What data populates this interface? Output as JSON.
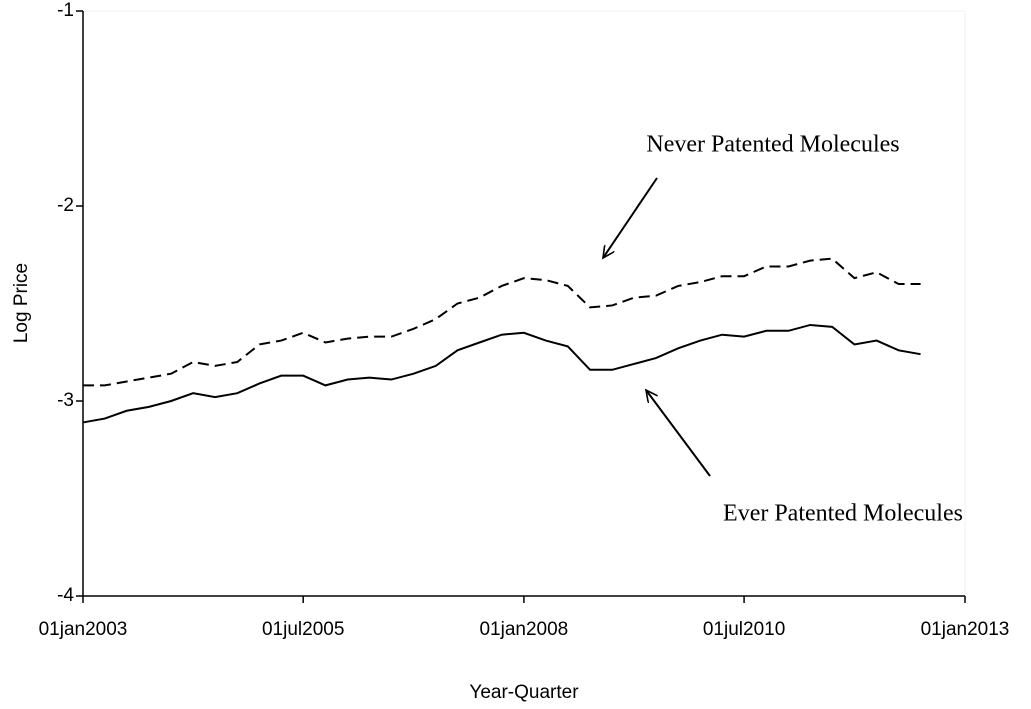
{
  "chart_data": {
    "type": "line",
    "y_label": "Log Price",
    "x_label": "Year-Quarter",
    "x": [
      "2003-01-01",
      "2003-04-01",
      "2003-07-01",
      "2003-10-01",
      "2004-01-01",
      "2004-04-01",
      "2004-07-01",
      "2004-10-01",
      "2005-01-01",
      "2005-04-01",
      "2005-07-01",
      "2005-10-01",
      "2006-01-01",
      "2006-04-01",
      "2006-07-01",
      "2006-10-01",
      "2007-01-01",
      "2007-04-01",
      "2007-07-01",
      "2007-10-01",
      "2008-01-01",
      "2008-04-01",
      "2008-07-01",
      "2008-10-01",
      "2009-01-01",
      "2009-04-01",
      "2009-07-01",
      "2009-10-01",
      "2010-01-01",
      "2010-04-01",
      "2010-07-01",
      "2010-10-01",
      "2011-01-01",
      "2011-04-01",
      "2011-07-01",
      "2011-10-01",
      "2012-01-01",
      "2012-04-01",
      "2012-07-01"
    ],
    "series": [
      {
        "name": "Never Patented Molecules",
        "color": "#000000",
        "style": "dashed",
        "values": [
          -2.92,
          -2.92,
          -2.9,
          -2.88,
          -2.86,
          -2.8,
          -2.82,
          -2.8,
          -2.71,
          -2.69,
          -2.65,
          -2.7,
          -2.68,
          -2.67,
          -2.67,
          -2.63,
          -2.58,
          -2.5,
          -2.47,
          -2.41,
          -2.37,
          -2.38,
          -2.41,
          -2.52,
          -2.51,
          -2.47,
          -2.46,
          -2.41,
          -2.39,
          -2.36,
          -2.36,
          -2.31,
          -2.31,
          -2.28,
          -2.27,
          -2.37,
          -2.34,
          -2.4,
          -2.4
        ]
      },
      {
        "name": "Ever Patented Molecules",
        "color": "#000000",
        "style": "solid",
        "values": [
          -3.11,
          -3.09,
          -3.05,
          -3.03,
          -3.0,
          -2.96,
          -2.98,
          -2.96,
          -2.91,
          -2.87,
          -2.87,
          -2.92,
          -2.89,
          -2.88,
          -2.89,
          -2.86,
          -2.82,
          -2.74,
          -2.7,
          -2.66,
          -2.65,
          -2.69,
          -2.72,
          -2.84,
          -2.84,
          -2.81,
          -2.78,
          -2.73,
          -2.69,
          -2.66,
          -2.67,
          -2.64,
          -2.64,
          -2.61,
          -2.62,
          -2.71,
          -2.69,
          -2.74,
          -2.76
        ]
      }
    ],
    "xlim": [
      "2003-01-01",
      "2013-01-01"
    ],
    "xticks": [
      {
        "value": "2003-01-01",
        "label": "01jan2003"
      },
      {
        "value": "2005-07-01",
        "label": "01jul2005"
      },
      {
        "value": "2008-01-01",
        "label": "01jan2008"
      },
      {
        "value": "2010-07-01",
        "label": "01jul2010"
      },
      {
        "value": "2013-01-01",
        "label": "01jan2013"
      }
    ],
    "ylim": [
      -4,
      -1
    ],
    "yticks": [
      -1,
      -2,
      -3,
      -4
    ],
    "grid": false
  }
}
